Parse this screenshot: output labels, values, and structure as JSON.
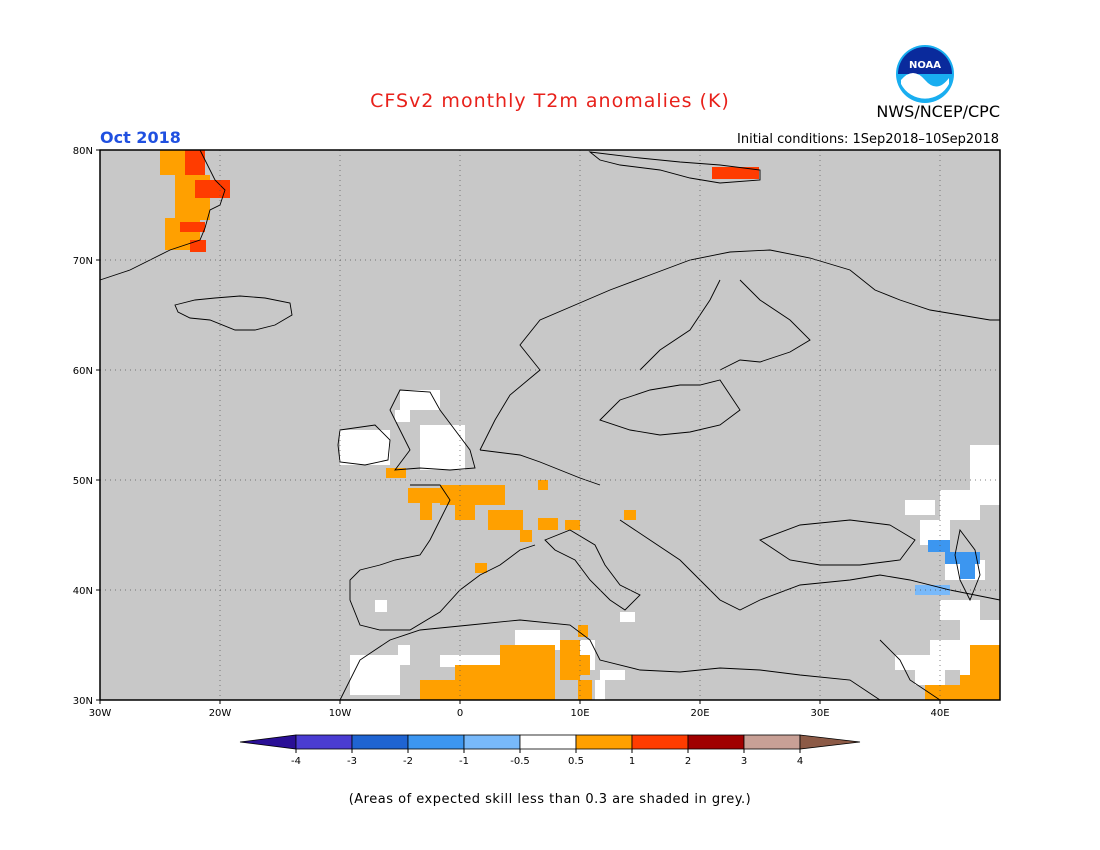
{
  "header": {
    "title": "CFSv2 monthly T2m anomalies (K)",
    "month": "Oct 2018",
    "org": "NWS/NCEP/CPC",
    "initial_conditions": "Initial conditions: 1Sep2018–10Sep2018",
    "logo_text": "NOAA"
  },
  "map": {
    "lat_labels": [
      "80N",
      "70N",
      "60N",
      "50N",
      "40N",
      "30N"
    ],
    "lon_labels": [
      "30W",
      "20W",
      "10W",
      "0",
      "10E",
      "20E",
      "30E",
      "40E"
    ],
    "background_color": "#c8c8c8",
    "anomaly_regions": [
      {
        "name": "greenland-east",
        "class": "1-2"
      },
      {
        "name": "svalbard",
        "class": "1-2"
      },
      {
        "name": "france",
        "class": "0.5-1"
      },
      {
        "name": "sahara",
        "class": "0.5-1"
      },
      {
        "name": "caucasus",
        "class": "-1--0.5"
      }
    ]
  },
  "colorbar": {
    "labels": [
      "-4",
      "-3",
      "-2",
      "-1",
      "-0.5",
      "0.5",
      "1",
      "2",
      "3",
      "4"
    ],
    "colors": [
      "#2a0f96",
      "#4a3cd2",
      "#1f64d2",
      "#3c96f0",
      "#78b9fa",
      "#ffffff",
      "#ffa000",
      "#ff3c00",
      "#a00000",
      "#c8a096",
      "#8c5a46"
    ]
  },
  "footer": "(Areas of expected skill less than 0.3 are shaded in grey.)"
}
